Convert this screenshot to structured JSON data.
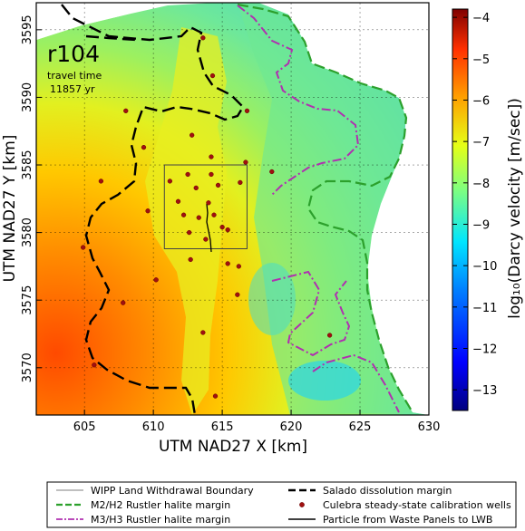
{
  "chart_data": {
    "type": "heatmap",
    "xlabel": "UTM NAD27 X [km]",
    "ylabel": "UTM NAD27 Y [km]",
    "xlim": [
      601.5,
      630
    ],
    "ylim": [
      3566.5,
      3597
    ],
    "xticks": [
      605,
      610,
      615,
      620,
      625,
      630
    ],
    "yticks": [
      3570,
      3575,
      3580,
      3585,
      3590,
      3595
    ],
    "grid": true,
    "annotation": {
      "title": "r104",
      "line1": "travel time",
      "line2": "11857 yr"
    },
    "colorbar": {
      "label": "log₁₀(Darcy velocity [m/sec])",
      "range": [
        -13.5,
        -3.8
      ],
      "ticks": [
        -4,
        -5,
        -6,
        -7,
        -8,
        -9,
        -10,
        -11,
        -12,
        -13
      ],
      "colors": [
        "#00007f",
        "#0000ff",
        "#007fff",
        "#00e5ff",
        "#7fff7f",
        "#e5ff16",
        "#ffa000",
        "#ff3000",
        "#7f0000"
      ]
    },
    "rectangle": {
      "x": [
        610.8,
        616.8
      ],
      "y": [
        3578.8,
        3585
      ]
    },
    "wells": [
      [
        613.6,
        3594.4
      ],
      [
        614.3,
        3591.6
      ],
      [
        616.8,
        3589
      ],
      [
        608,
        3589
      ],
      [
        612.8,
        3587.2
      ],
      [
        609.3,
        3586.3
      ],
      [
        616.7,
        3585.2
      ],
      [
        614.2,
        3585.6
      ],
      [
        612.5,
        3584.3
      ],
      [
        614.2,
        3584.3
      ],
      [
        611.2,
        3583.8
      ],
      [
        613.1,
        3583.3
      ],
      [
        614.7,
        3583.5
      ],
      [
        616.3,
        3583.7
      ],
      [
        606.2,
        3583.8
      ],
      [
        611.8,
        3582.3
      ],
      [
        614,
        3582.2
      ],
      [
        612.2,
        3581.3
      ],
      [
        613.3,
        3581.1
      ],
      [
        614.4,
        3581.3
      ],
      [
        615,
        3580.4
      ],
      [
        615.4,
        3580.2
      ],
      [
        612.6,
        3580
      ],
      [
        613.8,
        3579.5
      ],
      [
        604.9,
        3578.9
      ],
      [
        615.4,
        3577.7
      ],
      [
        612.7,
        3578
      ],
      [
        616.2,
        3577.5
      ],
      [
        610.2,
        3576.5
      ],
      [
        616.1,
        3575.4
      ],
      [
        607.8,
        3574.8
      ],
      [
        613.6,
        3572.6
      ],
      [
        622.8,
        3572.4
      ],
      [
        605.7,
        3570.2
      ],
      [
        614.5,
        3567.9
      ],
      [
        618.6,
        3584.5
      ],
      [
        609.6,
        3581.6
      ]
    ]
  },
  "legend": {
    "items": [
      {
        "label": "WIPP Land Withdrawal Boundary",
        "style": "thin-solid",
        "color": "#555555"
      },
      {
        "label": "Salado dissolution margin",
        "style": "thick-dashed",
        "color": "#000000"
      },
      {
        "label": "M2/H2 Rustler halite margin",
        "style": "dashed",
        "color": "#2ca02c"
      },
      {
        "label": "Culebra steady-state calibration wells",
        "style": "dot",
        "color": "#a01010"
      },
      {
        "label": "M3/H3 Rustler halite margin",
        "style": "dash-dot",
        "color": "#b030b0"
      },
      {
        "label": "Particle from Waste Panels to LWB",
        "style": "solid",
        "color": "#000000"
      }
    ]
  }
}
